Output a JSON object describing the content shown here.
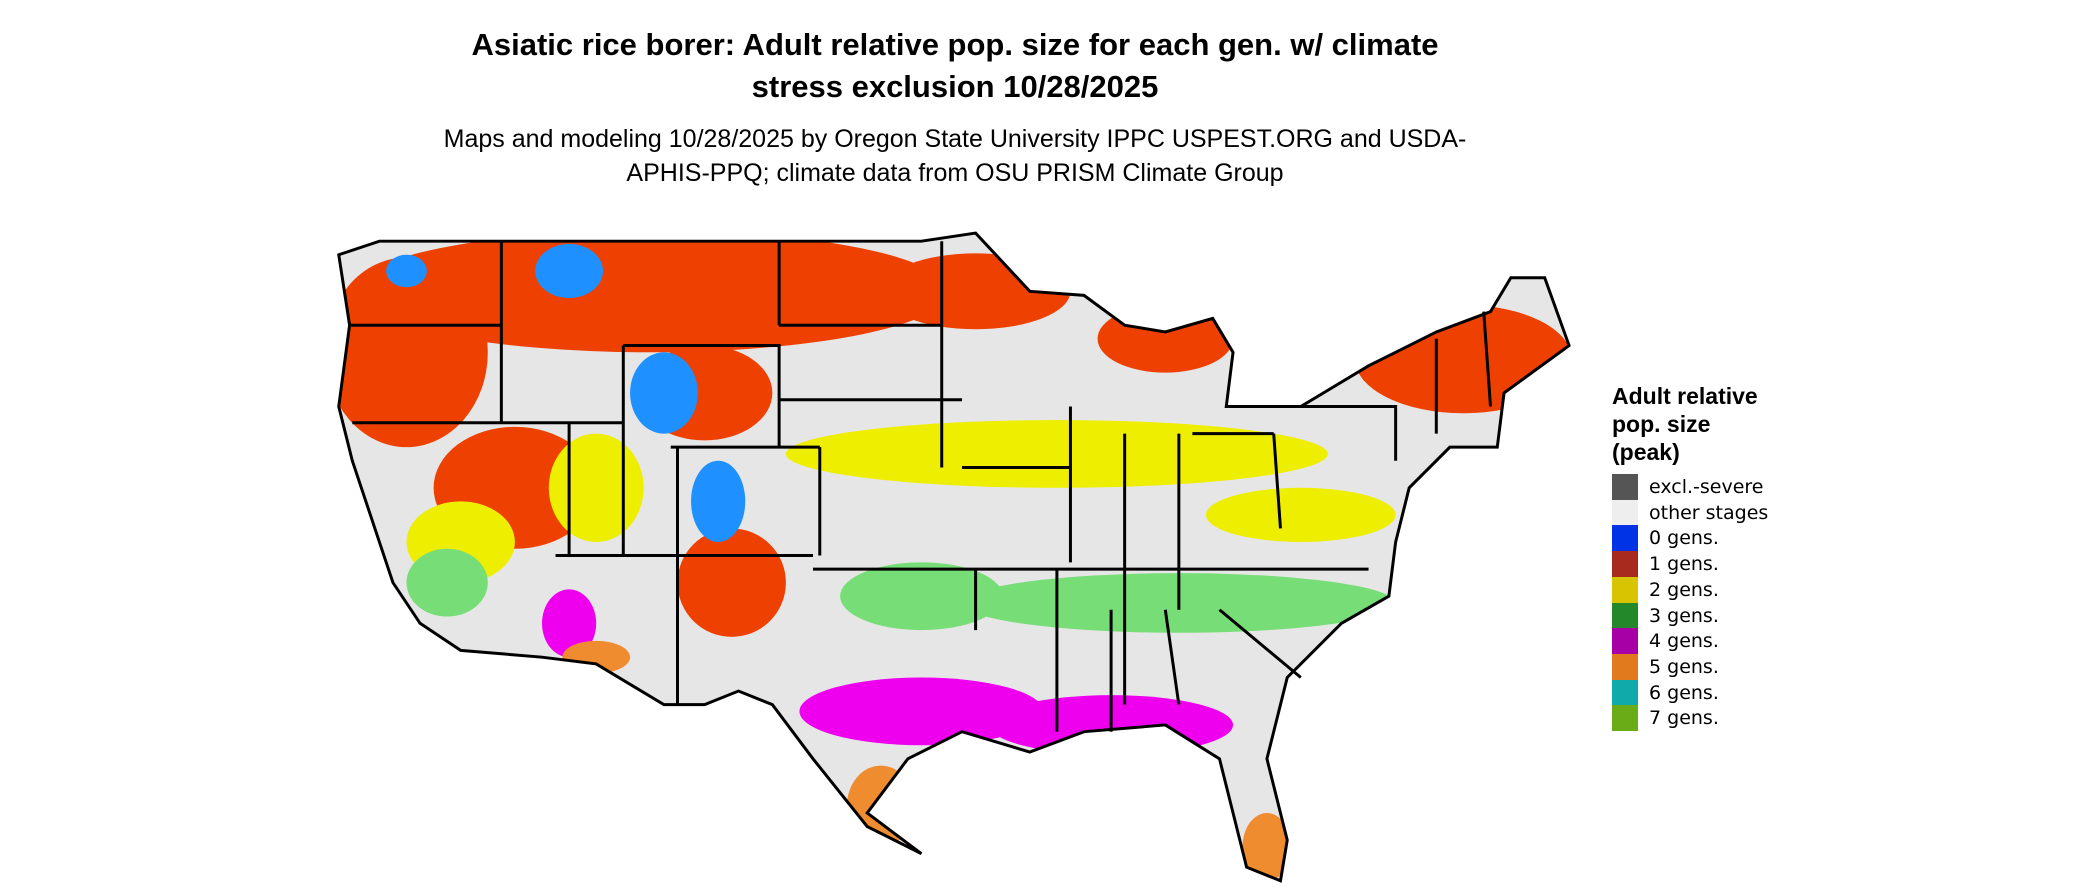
{
  "title": "Asiatic rice borer: Adult relative pop. size for each gen. w/ climate stress exclusion 10/28/2025",
  "subtitle": "Maps and modeling 10/28/2025 by Oregon State University IPPC USPEST.ORG and USDA-APHIS-PPQ; climate data from OSU PRISM Climate Group",
  "legend": {
    "title": "Adult relative pop. size (peak)",
    "items": [
      {
        "label": "excl.-severe",
        "color": "#555555"
      },
      {
        "label": "other stages",
        "color": "#eeeeee"
      },
      {
        "label": "0 gens.",
        "color": "#0033e6"
      },
      {
        "label": "1 gens.",
        "color": "#a82a1e"
      },
      {
        "label": "2 gens.",
        "color": "#d8c400"
      },
      {
        "label": "3 gens.",
        "color": "#23882a"
      },
      {
        "label": "4 gens.",
        "color": "#a600a6"
      },
      {
        "label": "5 gens.",
        "color": "#e07a1c"
      },
      {
        "label": "6 gens.",
        "color": "#10aaaa"
      },
      {
        "label": "7 gens.",
        "color": "#6aac18"
      }
    ]
  }
}
